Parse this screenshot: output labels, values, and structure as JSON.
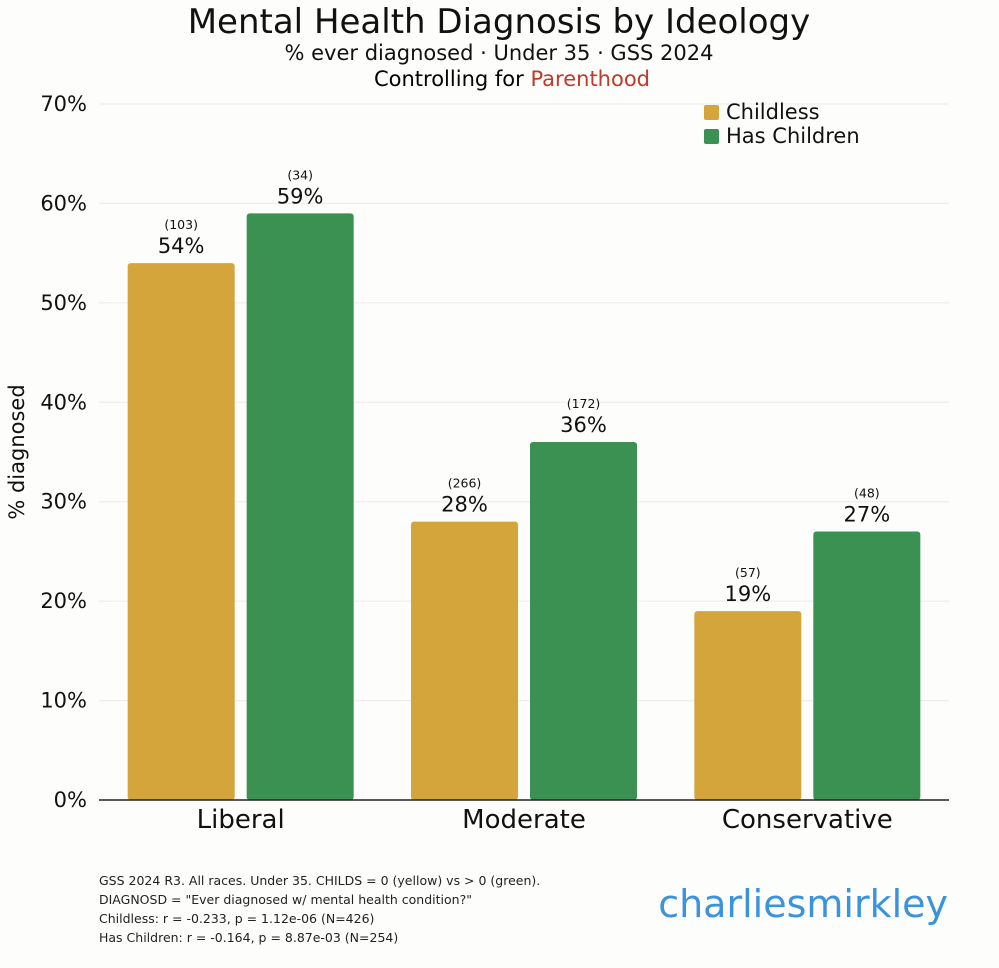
{
  "chart_data": {
    "type": "bar",
    "title": "Mental Health Diagnosis by Ideology",
    "subtitle": "% ever diagnosed · Under 35 · GSS 2024",
    "control_prefix": "Controlling for",
    "control_variable": "Parenthood",
    "control_color": "#c0392b",
    "ylabel": "% diagnosed",
    "xlabel": "",
    "ylim": [
      0,
      70
    ],
    "yticks": [
      0,
      10,
      20,
      30,
      40,
      50,
      60,
      70
    ],
    "ytick_labels": [
      "0%",
      "10%",
      "20%",
      "30%",
      "40%",
      "50%",
      "60%",
      "70%"
    ],
    "grid": true,
    "legend_position": "top-right",
    "categories": [
      "Liberal",
      "Moderate",
      "Conservative"
    ],
    "series": [
      {
        "name": "Childless",
        "color": "#d4a53a",
        "values": [
          54,
          28,
          19
        ],
        "value_labels": [
          "54%",
          "28%",
          "19%"
        ],
        "n_labels": [
          "(103)",
          "(266)",
          "(57)"
        ]
      },
      {
        "name": "Has Children",
        "color": "#3a9152",
        "values": [
          59,
          36,
          27
        ],
        "value_labels": [
          "59%",
          "36%",
          "27%"
        ],
        "n_labels": [
          "(34)",
          "(172)",
          "(48)"
        ]
      }
    ]
  },
  "footnotes": [
    "GSS 2024 R3. All races. Under 35. CHILDS = 0 (yellow) vs > 0 (green).",
    "DIAGNOSD = \"Ever diagnosed w/ mental health condition?\"",
    "Childless: r = -0.233, p = 1.12e-06 (N=426)",
    "Has Children: r = -0.164, p = 8.87e-03 (N=254)"
  ],
  "brand": "charliesmirkley",
  "brand_color": "#3b93db"
}
